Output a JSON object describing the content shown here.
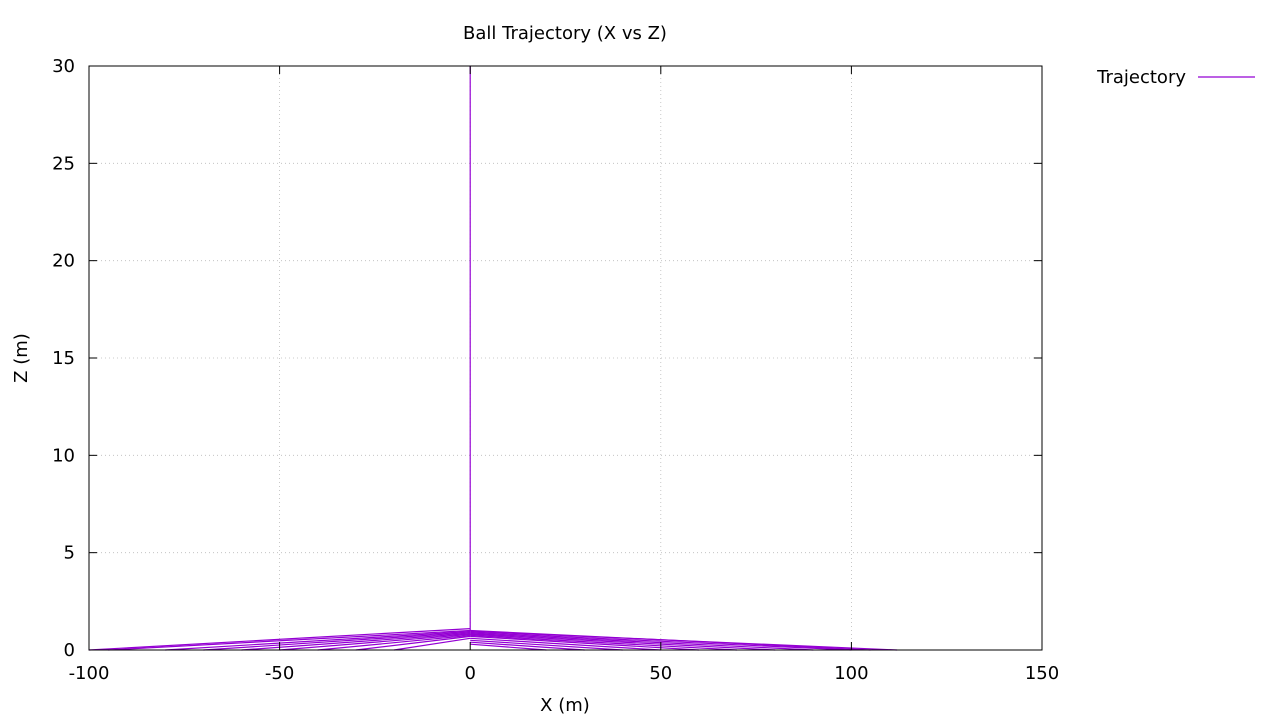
{
  "chart_data": {
    "type": "line",
    "title": "Ball Trajectory (X vs Z)",
    "xlabel": "X (m)",
    "ylabel": "Z (m)",
    "xlim": [
      -100,
      150
    ],
    "ylim": [
      0,
      30
    ],
    "xticks": [
      "-100",
      "-50",
      "0",
      "50",
      "100",
      "150"
    ],
    "yticks": [
      "0",
      "5",
      "10",
      "15",
      "20",
      "25",
      "30"
    ],
    "xtick_values": [
      -100,
      -50,
      0,
      50,
      100,
      150
    ],
    "ytick_values": [
      0,
      5,
      10,
      15,
      20,
      25,
      30
    ],
    "grid": true,
    "legend_position": "outside-top-right",
    "colors": {
      "series": "#9400d3",
      "grid": "#bbbbbb",
      "frame": "#000000"
    },
    "series": [
      {
        "name": "Trajectory",
        "segments": [
          [
            [
              0.0,
              30.0
            ],
            [
              0.0,
              1.0
            ]
          ],
          [
            [
              0.0,
              1.1
            ],
            [
              -100.0,
              0.0
            ]
          ],
          [
            [
              0.0,
              1.0
            ],
            [
              -95.0,
              0.0
            ]
          ],
          [
            [
              0.0,
              0.95
            ],
            [
              -80.0,
              0.0
            ]
          ],
          [
            [
              0.0,
              0.9
            ],
            [
              -70.0,
              0.0
            ]
          ],
          [
            [
              0.0,
              0.85
            ],
            [
              -60.0,
              0.0
            ]
          ],
          [
            [
              0.0,
              0.8
            ],
            [
              -50.0,
              0.0
            ]
          ],
          [
            [
              0.0,
              0.75
            ],
            [
              -40.0,
              0.0
            ]
          ],
          [
            [
              0.0,
              0.7
            ],
            [
              -30.0,
              0.0
            ]
          ],
          [
            [
              0.0,
              0.6
            ],
            [
              -20.0,
              0.0
            ]
          ],
          [
            [
              0.0,
              1.0
            ],
            [
              105.0,
              0.0
            ]
          ],
          [
            [
              0.0,
              0.95
            ],
            [
              112.0,
              0.0
            ]
          ],
          [
            [
              0.0,
              0.9
            ],
            [
              100.0,
              0.0
            ]
          ],
          [
            [
              0.0,
              0.85
            ],
            [
              90.0,
              0.0
            ]
          ],
          [
            [
              0.0,
              0.8
            ],
            [
              80.0,
              0.0
            ]
          ],
          [
            [
              0.0,
              0.75
            ],
            [
              70.0,
              0.0
            ]
          ],
          [
            [
              0.0,
              0.7
            ],
            [
              60.0,
              0.0
            ]
          ],
          [
            [
              0.0,
              0.6
            ],
            [
              50.0,
              0.0
            ]
          ],
          [
            [
              0.0,
              0.5
            ],
            [
              40.0,
              0.0
            ]
          ],
          [
            [
              0.0,
              0.4
            ],
            [
              30.0,
              0.0
            ]
          ],
          [
            [
              0.0,
              0.3
            ],
            [
              20.0,
              0.0
            ]
          ]
        ]
      }
    ]
  }
}
